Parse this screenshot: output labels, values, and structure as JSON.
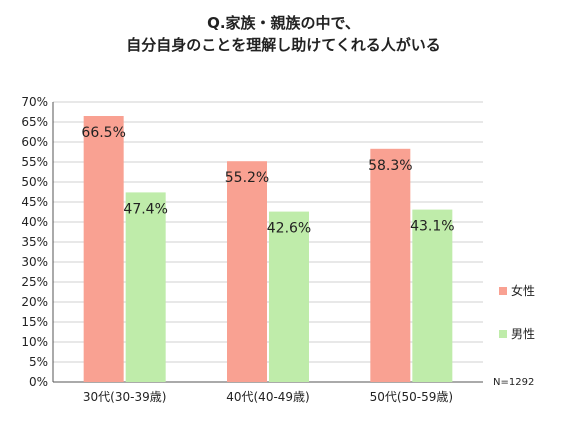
{
  "chart_data": {
    "type": "bar",
    "title_lines": [
      "Q.家族・親族の中で、",
      "自分自身のことを理解し助けてくれる人がいる"
    ],
    "categories": [
      "30代(30-39歳)",
      "40代(40-49歳)",
      "50代(50-59歳)"
    ],
    "series": [
      {
        "name": "女性",
        "values": [
          66.5,
          55.2,
          58.3
        ],
        "labels": [
          "66.5%",
          "55.2%",
          "58.3%"
        ],
        "color": "#f9a192"
      },
      {
        "name": "男性",
        "values": [
          47.4,
          42.6,
          43.1
        ],
        "labels": [
          "47.4%",
          "42.6%",
          "43.1%"
        ],
        "color": "#bfecaa"
      }
    ],
    "yticks": [
      "0%",
      "5%",
      "10%",
      "15%",
      "20%",
      "25%",
      "30%",
      "35%",
      "40%",
      "45%",
      "50%",
      "55%",
      "60%",
      "65%",
      "70%"
    ],
    "ylim": [
      0,
      70
    ],
    "grid": true,
    "legend_position": "right",
    "note": "N=1292"
  }
}
